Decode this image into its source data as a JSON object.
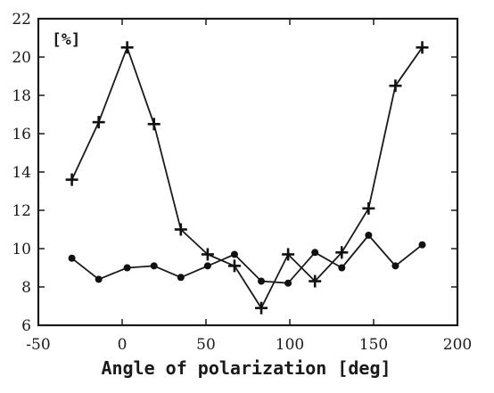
{
  "chart_data": {
    "type": "line",
    "xlabel": "Angle of polarization [deg]",
    "ylabel": "[%]",
    "xlim": [
      -50,
      200
    ],
    "ylim": [
      6,
      22
    ],
    "x_ticks": [
      -50,
      0,
      50,
      100,
      150,
      200
    ],
    "y_ticks": [
      6,
      8,
      10,
      12,
      14,
      16,
      18,
      20,
      22
    ],
    "grid": false,
    "series": [
      {
        "marker": "plus",
        "x": [
          -30,
          -14,
          3,
          19,
          35,
          51,
          67,
          83,
          99,
          115,
          131,
          147,
          163,
          179
        ],
        "y": [
          13.6,
          16.6,
          20.5,
          16.5,
          11.0,
          9.7,
          9.1,
          6.9,
          9.7,
          8.3,
          9.8,
          12.1,
          18.5,
          20.5
        ]
      },
      {
        "marker": "circle",
        "x": [
          -30,
          -14,
          3,
          19,
          35,
          51,
          67,
          83,
          99,
          115,
          131,
          147,
          163,
          179
        ],
        "y": [
          9.5,
          8.4,
          9.0,
          9.1,
          8.5,
          9.1,
          9.7,
          8.3,
          8.2,
          9.8,
          9.0,
          10.7,
          9.1,
          10.2
        ]
      }
    ]
  }
}
